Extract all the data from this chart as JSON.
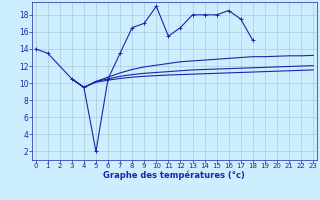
{
  "xlabel": "Graphe des températures (°c)",
  "background_color": "#cceeff",
  "grid_color": "#aaccdd",
  "line_color": "#2222aa",
  "x_ticks": [
    0,
    1,
    2,
    3,
    4,
    5,
    6,
    7,
    8,
    9,
    10,
    11,
    12,
    13,
    14,
    15,
    16,
    17,
    18,
    19,
    20,
    21,
    22,
    23
  ],
  "y_ticks": [
    2,
    4,
    6,
    8,
    10,
    12,
    14,
    16,
    18
  ],
  "ylim": [
    1,
    19.5
  ],
  "xlim": [
    -0.3,
    23.3
  ],
  "main_series": {
    "x": [
      0,
      1,
      3,
      4,
      5,
      6,
      7,
      8,
      9,
      10,
      11,
      12,
      13,
      14,
      15,
      16,
      17,
      18
    ],
    "y": [
      14.0,
      13.5,
      10.5,
      9.5,
      2.0,
      10.5,
      13.5,
      16.5,
      17.0,
      19.0,
      15.5,
      16.5,
      18.0,
      18.0,
      18.0,
      18.5,
      17.5,
      15.0
    ]
  },
  "line1": {
    "x": [
      3,
      4,
      5,
      6,
      7,
      8,
      9,
      10,
      11,
      12,
      13,
      14,
      15,
      16,
      17,
      18,
      19,
      20,
      21,
      22,
      23
    ],
    "y": [
      10.5,
      9.5,
      10.2,
      10.7,
      11.2,
      11.6,
      11.9,
      12.1,
      12.3,
      12.5,
      12.6,
      12.7,
      12.8,
      12.9,
      13.0,
      13.1,
      13.1,
      13.15,
      13.2,
      13.2,
      13.25
    ]
  },
  "line2": {
    "x": [
      3,
      4,
      5,
      6,
      7,
      8,
      9,
      10,
      11,
      12,
      13,
      14,
      15,
      16,
      17,
      18,
      19,
      20,
      21,
      22,
      23
    ],
    "y": [
      10.5,
      9.5,
      10.2,
      10.5,
      10.8,
      11.0,
      11.15,
      11.25,
      11.35,
      11.45,
      11.55,
      11.6,
      11.65,
      11.7,
      11.75,
      11.8,
      11.85,
      11.9,
      11.95,
      12.0,
      12.05
    ]
  },
  "line3": {
    "x": [
      3,
      4,
      5,
      6,
      7,
      8,
      9,
      10,
      11,
      12,
      13,
      14,
      15,
      16,
      17,
      18,
      19,
      20,
      21,
      22,
      23
    ],
    "y": [
      10.5,
      9.5,
      10.1,
      10.35,
      10.55,
      10.7,
      10.8,
      10.88,
      10.95,
      11.0,
      11.05,
      11.1,
      11.15,
      11.2,
      11.25,
      11.3,
      11.35,
      11.4,
      11.45,
      11.5,
      11.55
    ]
  }
}
